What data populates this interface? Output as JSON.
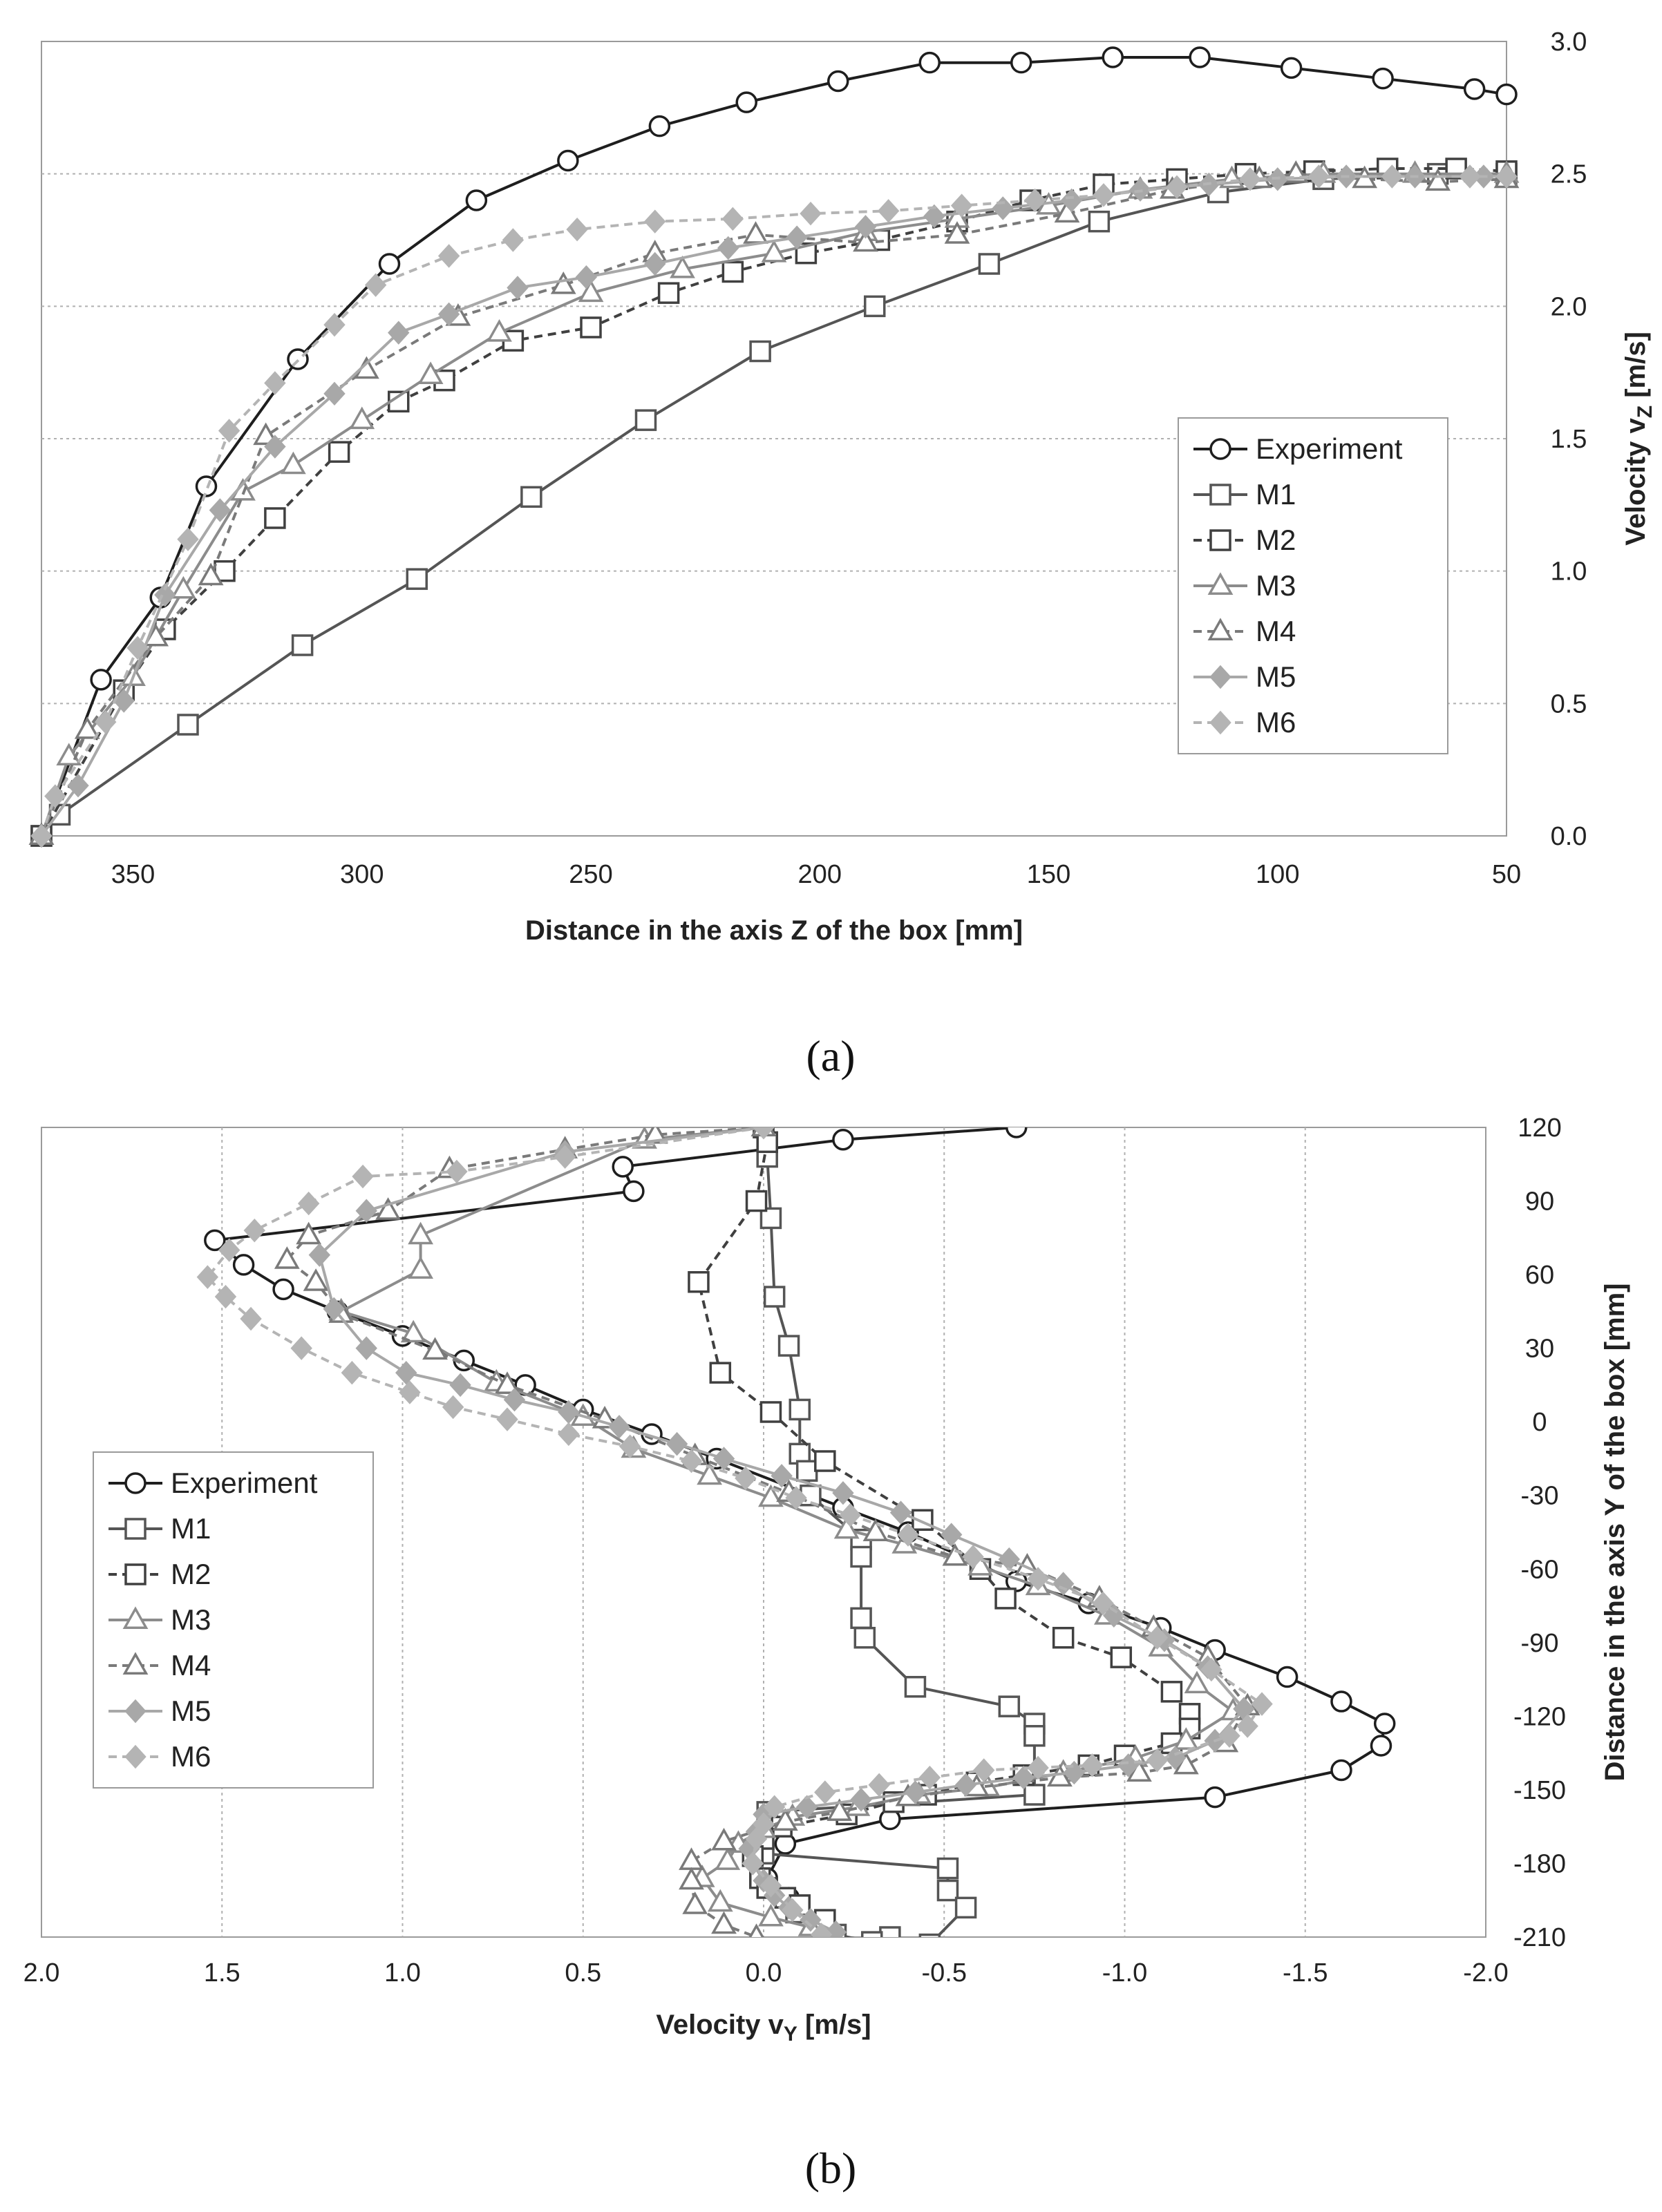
{
  "chart_data": [
    {
      "type": "line",
      "panel_label": "(a)",
      "xlabel": "Distance in the axis Z of the box [mm]",
      "ylabel": "Velocity v_Z [m/s]",
      "ylabel_main": "Velocity v",
      "ylabel_sub": "Z",
      "ylabel_unit": " [m/s]",
      "xlim": [
        370,
        50
      ],
      "ylim": [
        0,
        3
      ],
      "xticks": [
        350,
        300,
        250,
        200,
        150,
        100,
        50
      ],
      "yticks": [
        0.0,
        0.5,
        1.0,
        1.5,
        2.0,
        2.5,
        3.0
      ],
      "xtick_labels": [
        "350",
        "300",
        "250",
        "200",
        "150",
        "100",
        "50"
      ],
      "ytick_labels": [
        "0.0",
        "0.5",
        "1.0",
        "1.5",
        "2.0",
        "2.5",
        "3.0"
      ],
      "grid": "horizontal dotted",
      "legend_position": "right",
      "series": [
        {
          "name": "Experiment",
          "x": [
            370,
            357,
            344,
            334,
            314,
            294,
            275,
            255,
            235,
            216,
            196,
            176,
            156,
            136,
            117,
            97,
            77,
            57,
            50
          ],
          "y": [
            0,
            0.59,
            0.9,
            1.32,
            1.8,
            2.16,
            2.4,
            2.55,
            2.68,
            2.77,
            2.85,
            2.92,
            2.92,
            2.94,
            2.94,
            2.9,
            2.86,
            2.82,
            2.8
          ]
        },
        {
          "name": "M1",
          "x": [
            370,
            366,
            338,
            313,
            288,
            263,
            238,
            213,
            188,
            163,
            139,
            113,
            90,
            65,
            50
          ],
          "y": [
            0,
            0.08,
            0.42,
            0.72,
            0.97,
            1.28,
            1.57,
            1.83,
            2.0,
            2.16,
            2.32,
            2.43,
            2.48,
            2.5,
            2.5
          ]
        },
        {
          "name": "M2",
          "x": [
            370,
            352,
            343,
            330,
            319,
            305,
            292,
            282,
            267,
            250,
            233,
            219,
            203,
            187,
            170,
            154,
            138,
            122,
            107,
            92,
            76,
            61,
            50
          ],
          "y": [
            0,
            0.55,
            0.78,
            1.0,
            1.2,
            1.45,
            1.64,
            1.72,
            1.87,
            1.92,
            2.05,
            2.13,
            2.2,
            2.25,
            2.32,
            2.4,
            2.46,
            2.48,
            2.5,
            2.51,
            2.52,
            2.52,
            2.51
          ]
        },
        {
          "name": "M3",
          "x": [
            370,
            364,
            350,
            339,
            326,
            315,
            300,
            285,
            270,
            250,
            230,
            210,
            190,
            170,
            150,
            130,
            110,
            90,
            70,
            50
          ],
          "y": [
            0,
            0.3,
            0.6,
            0.93,
            1.3,
            1.4,
            1.57,
            1.74,
            1.9,
            2.05,
            2.14,
            2.2,
            2.28,
            2.33,
            2.38,
            2.44,
            2.48,
            2.5,
            2.5,
            2.5
          ]
        },
        {
          "name": "M4",
          "x": [
            370,
            360,
            345,
            333,
            321,
            299,
            279,
            256,
            236,
            214,
            190,
            170,
            146,
            123,
            104,
            96,
            81,
            65,
            50
          ],
          "y": [
            0,
            0.4,
            0.75,
            0.98,
            1.51,
            1.76,
            1.96,
            2.08,
            2.2,
            2.27,
            2.24,
            2.27,
            2.35,
            2.44,
            2.48,
            2.5,
            2.48,
            2.47,
            2.48
          ]
        },
        {
          "name": "M5",
          "x": [
            370,
            362,
            352,
            343,
            331,
            319,
            306,
            292,
            281,
            266,
            251,
            236,
            220,
            205,
            190,
            175,
            160,
            145,
            130,
            115,
            100,
            85,
            70,
            55,
            50
          ],
          "y": [
            0,
            0.19,
            0.51,
            0.91,
            1.23,
            1.47,
            1.67,
            1.9,
            1.97,
            2.07,
            2.11,
            2.16,
            2.22,
            2.26,
            2.3,
            2.34,
            2.37,
            2.4,
            2.44,
            2.46,
            2.48,
            2.49,
            2.49,
            2.49,
            2.49
          ]
        },
        {
          "name": "M6",
          "x": [
            370,
            367,
            356,
            349,
            338,
            329,
            319,
            306,
            297,
            281,
            267,
            253,
            236,
            219,
            202,
            185,
            169,
            153,
            138,
            122,
            106,
            91,
            75,
            58,
            50
          ],
          "y": [
            0,
            0.15,
            0.43,
            0.71,
            1.12,
            1.53,
            1.71,
            1.93,
            2.08,
            2.19,
            2.25,
            2.29,
            2.32,
            2.33,
            2.35,
            2.36,
            2.38,
            2.4,
            2.42,
            2.45,
            2.48,
            2.49,
            2.49,
            2.49,
            2.49
          ]
        }
      ]
    },
    {
      "type": "line",
      "panel_label": "(b)",
      "xlabel": "Velocity v_Y [m/s]",
      "xlabel_main": "Velocity v",
      "xlabel_sub": "Y",
      "xlabel_unit": " [m/s]",
      "ylabel": "Distance in the axis Y of the box [mm]",
      "xlim": [
        2.0,
        -2.0
      ],
      "ylim": [
        -210,
        120
      ],
      "xticks": [
        2.0,
        1.5,
        1.0,
        0.5,
        0.0,
        -0.5,
        -1.0,
        -1.5,
        -2.0
      ],
      "yticks": [
        120,
        90,
        60,
        30,
        0,
        -30,
        -60,
        -90,
        -120,
        -150,
        -180,
        -210
      ],
      "xtick_labels": [
        "2.0",
        "1.5",
        "1.0",
        "0.5",
        "0.0",
        "-0.5",
        "-1.0",
        "-1.5",
        "-2.0"
      ],
      "ytick_labels": [
        "120",
        "90",
        "60",
        "30",
        "0",
        "-30",
        "-60",
        "-90",
        "-120",
        "-150",
        "-180",
        "-210"
      ],
      "grid": "vertical dotted",
      "legend_position": "left",
      "series": [
        {
          "name": "Experiment",
          "x": [
            -0.7,
            -0.22,
            0.39,
            0.36,
            1.52,
            1.44,
            1.33,
            1.18,
            1.0,
            0.83,
            0.66,
            0.5,
            0.31,
            0.13,
            -0.22,
            -0.4,
            -0.7,
            -0.9,
            -1.1,
            -1.25,
            -1.45,
            -1.6,
            -1.72,
            -1.71,
            -1.6,
            -1.25,
            -0.35,
            -0.06,
            -0.01,
            -0.07,
            -0.15
          ],
          "y": [
            120,
            115,
            104,
            94,
            74,
            64,
            54,
            45,
            35,
            25,
            15,
            5,
            -5,
            -15,
            -35,
            -45,
            -65,
            -74,
            -84,
            -93,
            -104,
            -114,
            -123,
            -132,
            -142,
            -153,
            -162,
            -172,
            -186,
            -194,
            -206
          ]
        },
        {
          "name": "M1",
          "x": [
            0.0,
            -0.01,
            -0.02,
            -0.03,
            -0.07,
            -0.1,
            -0.1,
            -0.12,
            -0.13,
            -0.27,
            -0.27,
            -0.27,
            -0.28,
            -0.42,
            -0.68,
            -0.75,
            -0.75,
            -0.75,
            -0.01,
            0.0,
            -0.51,
            -0.51,
            -0.56,
            -0.46,
            -0.35,
            -0.3,
            -0.2,
            -0.09
          ],
          "y": [
            120,
            108,
            83,
            51,
            31,
            5,
            -13,
            -20,
            -30,
            -48,
            -55,
            -80,
            -88,
            -108,
            -116,
            -123,
            -128,
            -152,
            -159,
            -176,
            -182,
            -191,
            -198,
            -213,
            -210,
            -212,
            -209,
            -200
          ]
        },
        {
          "name": "M2",
          "x": [
            0.0,
            -0.01,
            0.02,
            0.18,
            0.12,
            -0.02,
            -0.17,
            -0.44,
            -0.6,
            -0.67,
            -0.83,
            -0.99,
            -1.13,
            -1.18,
            -1.18,
            -1.13,
            -1.0,
            -0.9,
            -0.72,
            -0.59,
            -0.45,
            -0.36,
            -0.23,
            -0.05,
            0.0,
            0.03,
            0.01,
            -0.01,
            -0.06,
            -0.1,
            -0.17
          ],
          "y": [
            120,
            114,
            90,
            57,
            20,
            4,
            -16,
            -40,
            -60,
            -72,
            -88,
            -96,
            -110,
            -119,
            -125,
            -131,
            -136,
            -140,
            -144,
            -147,
            -152,
            -155,
            -160,
            -165,
            -170,
            -177,
            -186,
            -190,
            -194,
            -197,
            -203
          ]
        },
        {
          "name": "M3",
          "x": [
            0.0,
            0.33,
            0.95,
            0.95,
            1.17,
            0.97,
            0.74,
            0.5,
            0.36,
            0.15,
            -0.02,
            -0.23,
            -0.39,
            -0.6,
            -0.76,
            -0.95,
            -1.1,
            -1.2,
            -1.3,
            -1.17,
            -1.03,
            -0.83,
            -0.62,
            -0.43,
            -0.26,
            -0.08,
            0.0,
            0.07,
            0.1,
            0.17,
            0.12,
            -0.02,
            -0.13
          ],
          "y": [
            120,
            115,
            76,
            62,
            45,
            36,
            16,
            2,
            -11,
            -22,
            -31,
            -44,
            -50,
            -59,
            -67,
            -79,
            -92,
            -107,
            -118,
            -130,
            -137,
            -143,
            -149,
            -152,
            -157,
            -161,
            -166,
            -172,
            -179,
            -186,
            -196,
            -202,
            -206
          ]
        },
        {
          "name": "M4",
          "x": [
            0.0,
            0.3,
            0.55,
            0.87,
            1.04,
            1.26,
            1.32,
            1.24,
            1.17,
            0.91,
            0.71,
            0.44,
            0.19,
            -0.07,
            -0.31,
            -0.53,
            -0.73,
            -0.93,
            -1.08,
            -1.23,
            -1.34,
            -1.28,
            -1.17,
            -1.04,
            -0.82,
            -0.59,
            -0.4,
            -0.21,
            -0.06,
            0.11,
            0.2,
            0.2,
            0.19,
            0.11,
            0.02
          ],
          "y": [
            120,
            117,
            111,
            103,
            86,
            76,
            66,
            57,
            44,
            29,
            15,
            1,
            -14,
            -29,
            -45,
            -55,
            -59,
            -72,
            -84,
            -96,
            -116,
            -131,
            -140,
            -143,
            -145,
            -149,
            -153,
            -159,
            -163,
            -171,
            -179,
            -187,
            -197,
            -205,
            -210
          ]
        },
        {
          "name": "M5",
          "x": [
            0.0,
            0.55,
            1.1,
            1.23,
            1.19,
            1.1,
            0.99,
            0.84,
            0.69,
            0.54,
            0.4,
            0.24,
            0.11,
            -0.05,
            -0.22,
            -0.38,
            -0.52,
            -0.68,
            -0.83,
            -0.97,
            -1.11,
            -1.23,
            -1.33,
            -1.25,
            -1.14,
            -1.01,
            -0.86,
            -0.72,
            -0.56,
            -0.42,
            -0.27,
            -0.12,
            0.0,
            0.02,
            0.04,
            0.03,
            0.0,
            -0.03,
            -0.07,
            -0.13,
            -0.2
          ],
          "y": [
            120,
            110,
            86,
            68,
            46,
            30,
            20,
            15,
            9,
            4,
            -2,
            -9,
            -15,
            -22,
            -29,
            -37,
            -46,
            -56,
            -66,
            -79,
            -89,
            -100,
            -117,
            -130,
            -137,
            -140,
            -143,
            -145,
            -148,
            -151,
            -154,
            -157,
            -160,
            -167,
            -174,
            -180,
            -187,
            -193,
            -198,
            -203,
            -208
          ]
        },
        {
          "name": "M6",
          "x": [
            0.0,
            0.55,
            0.85,
            1.11,
            1.26,
            1.41,
            1.48,
            1.54,
            1.49,
            1.42,
            1.28,
            1.14,
            0.98,
            0.86,
            0.71,
            0.54,
            0.37,
            0.2,
            0.05,
            -0.09,
            -0.24,
            -0.4,
            -0.58,
            -0.76,
            -0.94,
            -1.09,
            -1.24,
            -1.38,
            -1.34,
            -1.29,
            -1.09,
            -0.91,
            -0.76,
            -0.61,
            -0.46,
            -0.32,
            -0.17,
            -0.03,
            0.0,
            0.02,
            0.03,
            -0.02,
            -0.08,
            -0.16
          ],
          "y": [
            120,
            108,
            102,
            100,
            89,
            78,
            70,
            59,
            51,
            42,
            30,
            20,
            12,
            6,
            1,
            -5,
            -10,
            -16,
            -23,
            -31,
            -38,
            -46,
            -55,
            -64,
            -74,
            -88,
            -101,
            -115,
            -124,
            -128,
            -138,
            -140,
            -141,
            -142,
            -145,
            -148,
            -151,
            -157,
            -164,
            -170,
            -180,
            -189,
            -199,
            -209
          ]
        }
      ]
    }
  ],
  "legend": {
    "items": [
      {
        "name": "Experiment",
        "color": "#1e1e1e",
        "dash": "none",
        "marker": "circle"
      },
      {
        "name": "M1",
        "color": "#555555",
        "dash": "none",
        "marker": "square"
      },
      {
        "name": "M2",
        "color": "#404040",
        "dash": "12,8",
        "marker": "square"
      },
      {
        "name": "M3",
        "color": "#8c8c8c",
        "dash": "none",
        "marker": "triangle"
      },
      {
        "name": "M4",
        "color": "#7a7a7a",
        "dash": "12,8",
        "marker": "triangle"
      },
      {
        "name": "M5",
        "color": "#a8a8a8",
        "dash": "none",
        "marker": "diamond"
      },
      {
        "name": "M6",
        "color": "#b4b4b4",
        "dash": "12,8",
        "marker": "diamond"
      }
    ]
  }
}
